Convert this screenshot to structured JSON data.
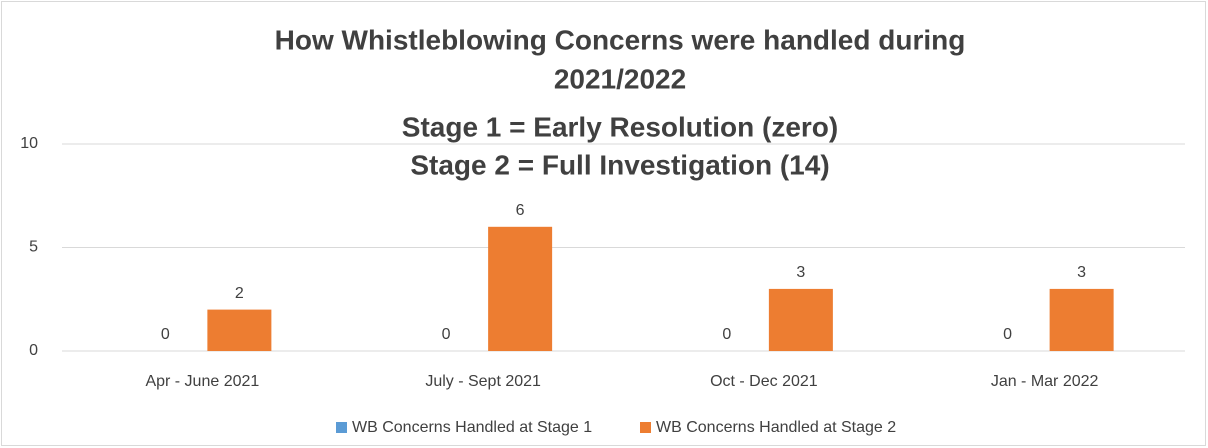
{
  "chart_data": {
    "type": "bar",
    "title": [
      "How Whistleblowing Concerns were handled during",
      "2021/2022",
      "Stage 1 = Early Resolution (zero)",
      "Stage 2 = Full Investigation (14)"
    ],
    "categories": [
      "Apr - June 2021",
      "July - Sept 2021",
      "Oct - Dec 2021",
      "Jan - Mar 2022"
    ],
    "series": [
      {
        "name": "WB Concerns Handled at Stage 1",
        "color": "#5b9bd5",
        "values": [
          0,
          0,
          0,
          0
        ]
      },
      {
        "name": "WB Concerns Handled at Stage 2",
        "color": "#ed7d31",
        "values": [
          2,
          6,
          3,
          3
        ]
      }
    ],
    "ylim": [
      0,
      10
    ],
    "yticks": [
      0,
      5,
      10
    ],
    "grid": true,
    "legend": "bottom"
  }
}
